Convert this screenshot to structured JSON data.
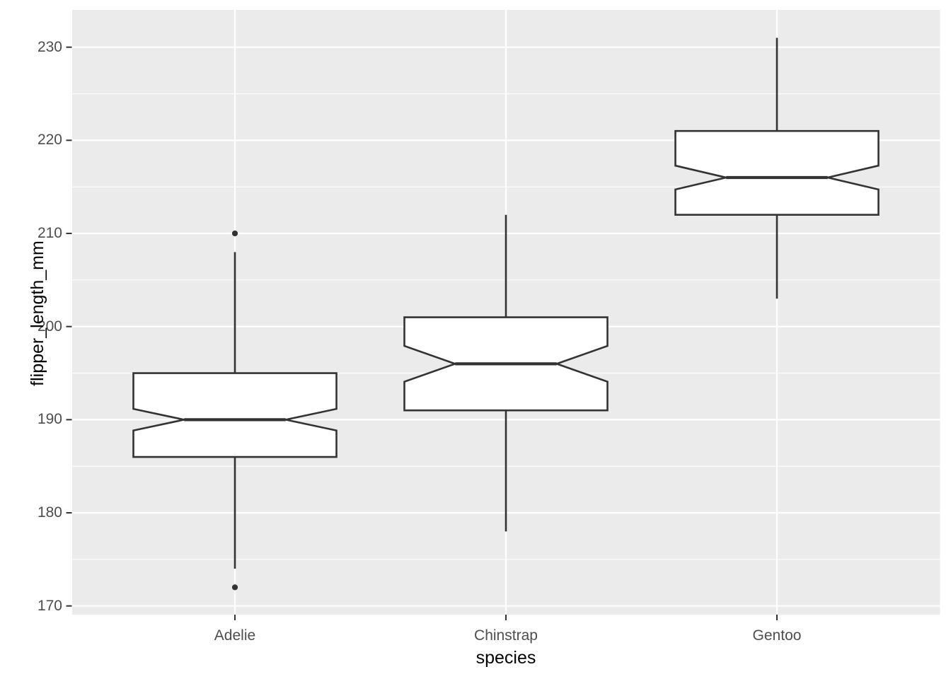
{
  "figure": {
    "background": "#FFFFFF",
    "panel_background": "#EBEBEB",
    "grid_color": "#FFFFFF",
    "box_fill": "#FFFFFF",
    "stroke_color": "#333333",
    "tick_label_color": "#4D4D4D",
    "axis_title_color": "#000000"
  },
  "chart_data": {
    "type": "boxplot",
    "title": "",
    "xlabel": "species",
    "ylabel": "flipper_length_mm",
    "categories": [
      "Adelie",
      "Chinstrap",
      "Gentoo"
    ],
    "y_ticks": [
      170,
      180,
      190,
      200,
      210,
      220,
      230
    ],
    "y_minor_ticks": [
      175,
      185,
      195,
      205,
      215,
      225
    ],
    "ylim": [
      169,
      234
    ],
    "grid": true,
    "notched": true,
    "legend": "none",
    "series": [
      {
        "name": "Adelie",
        "lower_whisker": 174,
        "q1": 186,
        "median": 190,
        "q3": 195,
        "upper_whisker": 208,
        "notch_low": 188.84,
        "notch_high": 191.16,
        "outliers": [
          210,
          172
        ]
      },
      {
        "name": "Chinstrap",
        "lower_whisker": 178,
        "q1": 191,
        "median": 196,
        "q3": 201,
        "upper_whisker": 212,
        "notch_low": 194.08,
        "notch_high": 197.92,
        "outliers": []
      },
      {
        "name": "Gentoo",
        "lower_whisker": 203,
        "q1": 212,
        "median": 216,
        "q3": 221,
        "upper_whisker": 231,
        "notch_low": 214.72,
        "notch_high": 217.28,
        "outliers": []
      }
    ]
  }
}
